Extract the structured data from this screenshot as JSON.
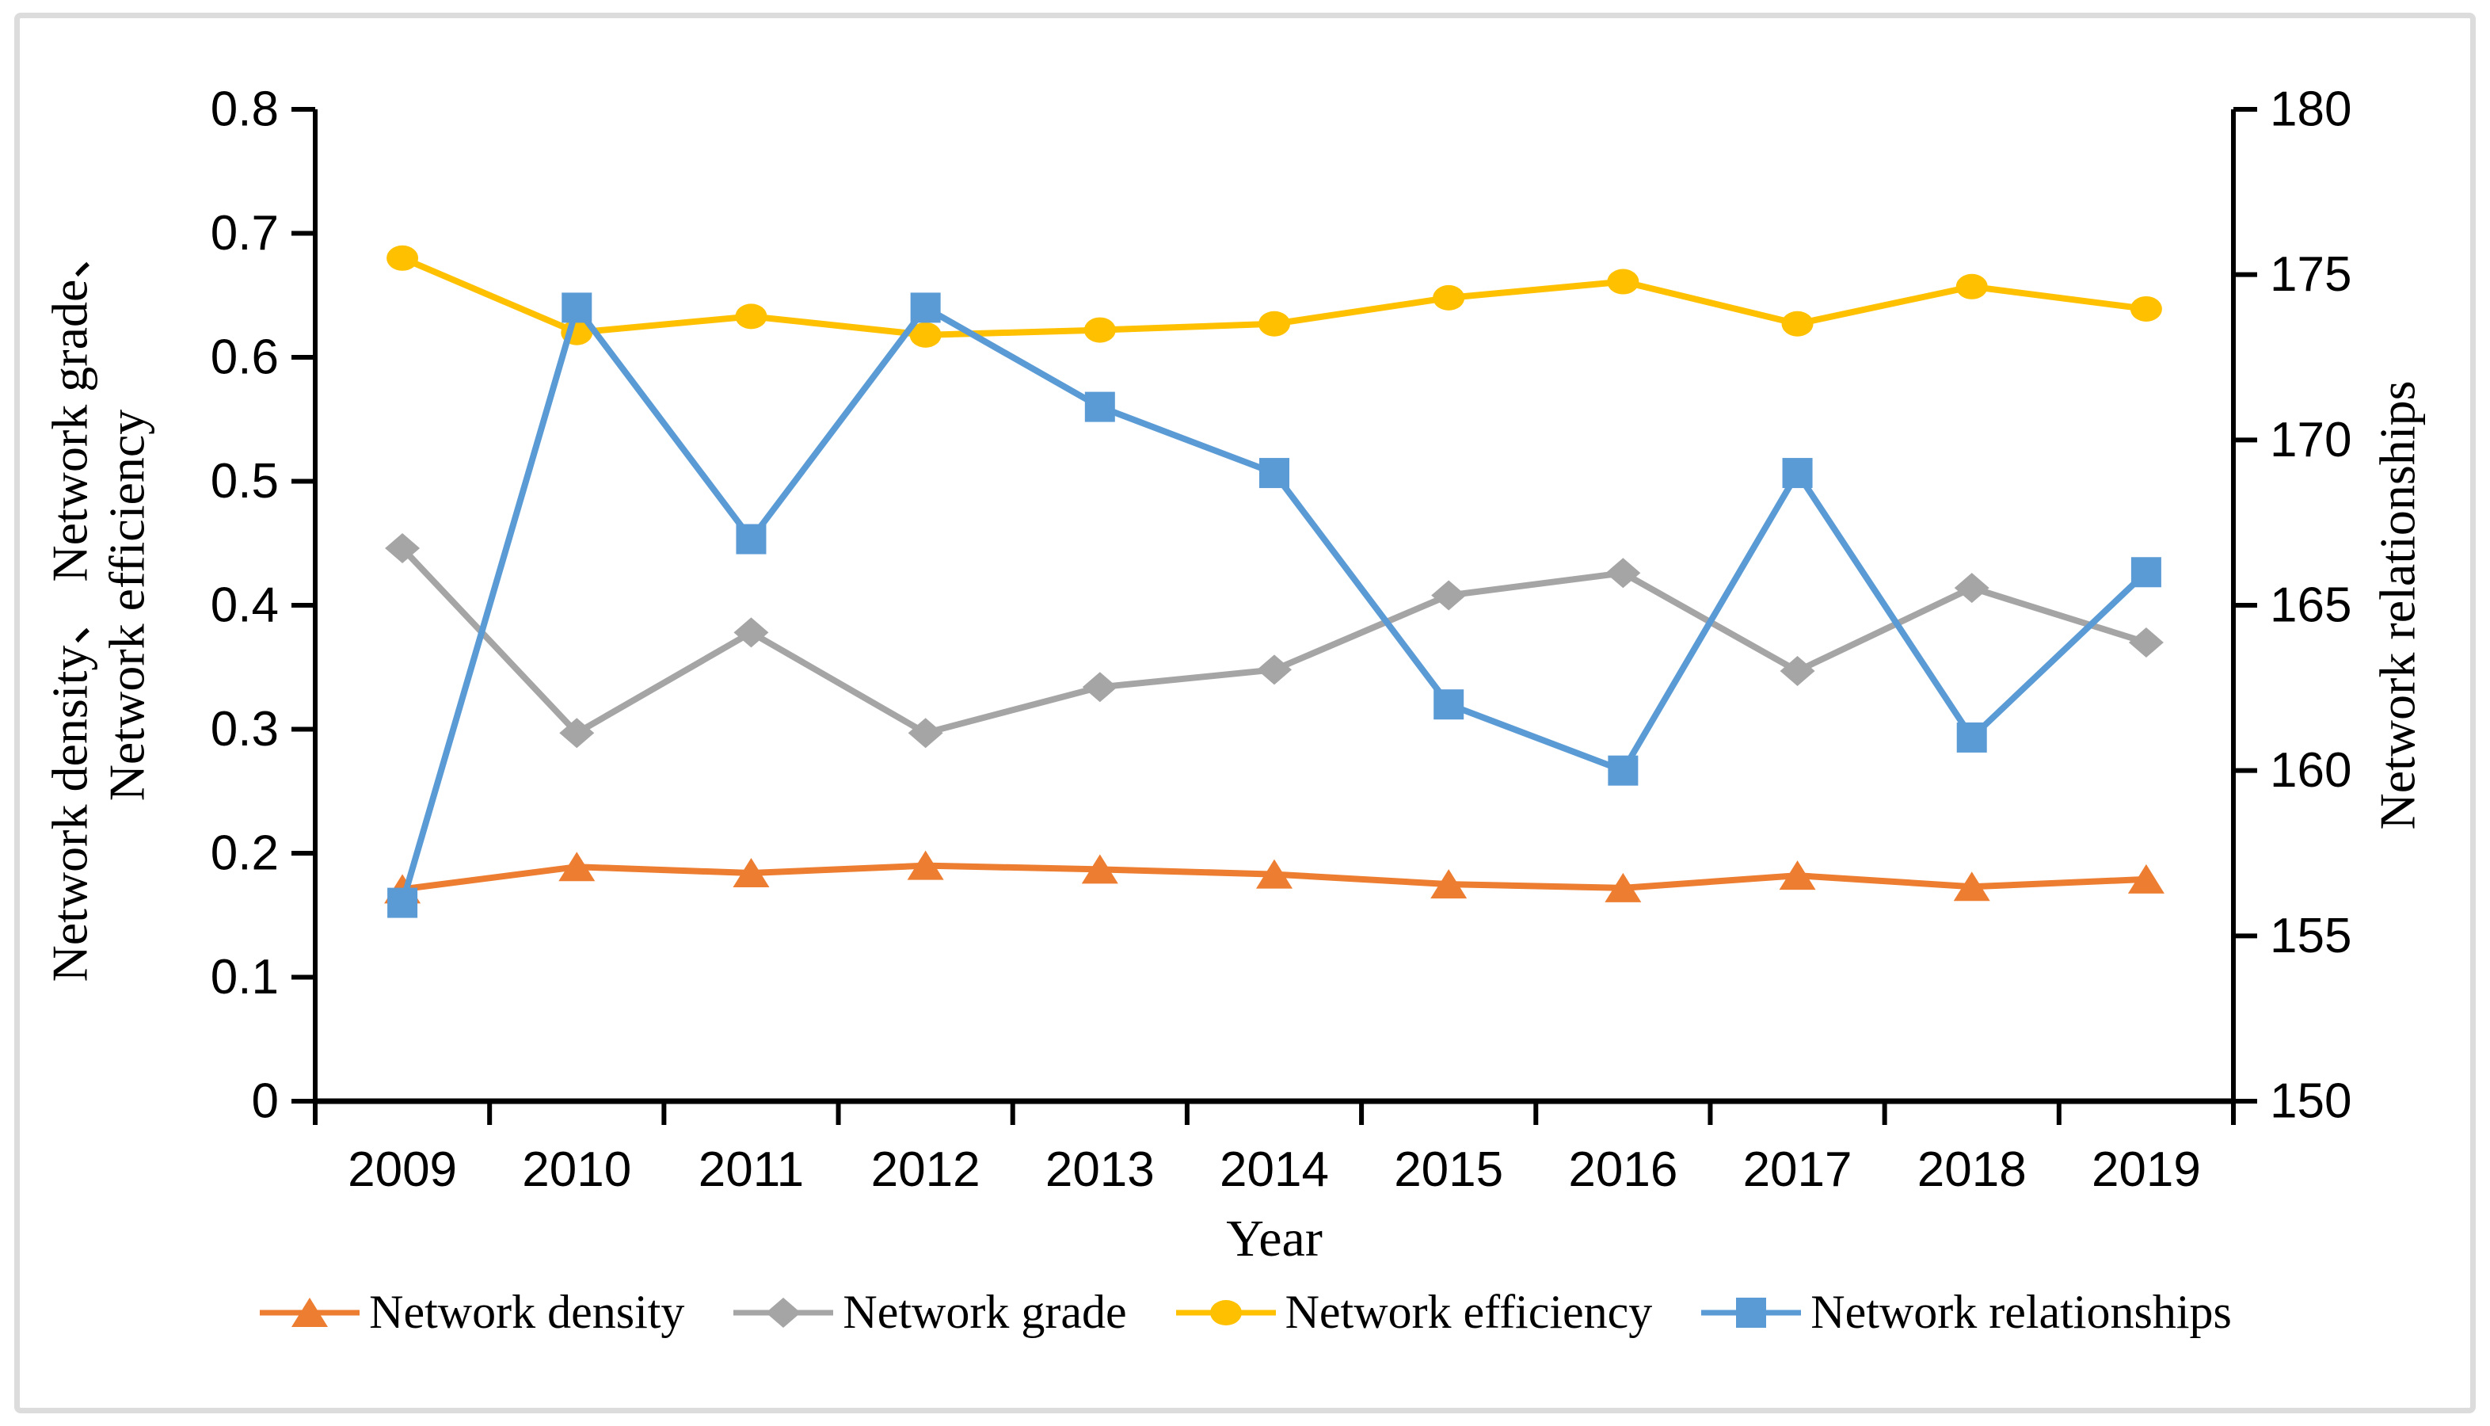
{
  "figure": {
    "background_color": "#ffffff",
    "border_color": "#dcdcdc"
  },
  "chart_data": {
    "type": "line",
    "categories": [
      "2009",
      "2010",
      "2011",
      "2012",
      "2013",
      "2014",
      "2015",
      "2016",
      "2017",
      "2018",
      "2019"
    ],
    "series": [
      {
        "name": "Network density",
        "axis": "left",
        "color": "#ED7D31",
        "marker": "triangle",
        "values": [
          0.171,
          0.189,
          0.184,
          0.19,
          0.187,
          0.183,
          0.175,
          0.172,
          0.182,
          0.173,
          0.179
        ]
      },
      {
        "name": "Network grade",
        "axis": "left",
        "color": "#A5A5A5",
        "marker": "diamond",
        "values": [
          0.446,
          0.297,
          0.378,
          0.297,
          0.334,
          0.348,
          0.408,
          0.426,
          0.347,
          0.414,
          0.37
        ]
      },
      {
        "name": "Network efficiency",
        "axis": "left",
        "color": "#FFC000",
        "marker": "circle",
        "values": [
          0.68,
          0.62,
          0.633,
          0.618,
          0.622,
          0.627,
          0.648,
          0.661,
          0.627,
          0.657,
          0.639
        ]
      },
      {
        "name": "Network relationships",
        "axis": "right",
        "color": "#5B9BD5",
        "marker": "square",
        "values": [
          156,
          174,
          167,
          174,
          171,
          169,
          162,
          160,
          169,
          161,
          166
        ]
      }
    ],
    "left_axis": {
      "min": 0,
      "max": 0.8,
      "step": 0.1,
      "tick_labels": [
        "0",
        "0.1",
        "0.2",
        "0.3",
        "0.4",
        "0.5",
        "0.6",
        "0.7",
        "0.8"
      ],
      "title_lines": [
        "Network density、 Network grade、",
        "Network efficiency"
      ]
    },
    "right_axis": {
      "min": 150,
      "max": 180,
      "step": 5,
      "tick_labels": [
        "150",
        "155",
        "160",
        "165",
        "170",
        "175",
        "180"
      ],
      "title": "Network relationships"
    },
    "x_axis": {
      "title": "Year",
      "tick_labels": [
        "2009",
        "2010",
        "2011",
        "2012",
        "2013",
        "2014",
        "2015",
        "2016",
        "2017",
        "2018",
        "2019"
      ]
    },
    "legend": {
      "position": "bottom",
      "items": [
        "Network density",
        "Network grade",
        "Network efficiency",
        "Network relationships"
      ]
    },
    "grid": "off"
  }
}
